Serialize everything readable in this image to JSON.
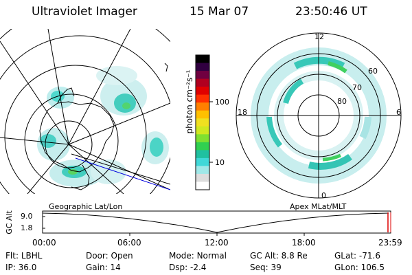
{
  "header": {
    "instrument": "Ultraviolet Imager",
    "date": "15 Mar 07",
    "time": "23:50:46 UT"
  },
  "colorbar": {
    "unit_label": "photon cm⁻²s⁻¹",
    "ticks": [
      "100",
      "10"
    ],
    "colors": [
      "#ffffff",
      "#dddddd",
      "#a0e8e8",
      "#40d8d8",
      "#20c0a0",
      "#30d050",
      "#80e030",
      "#d0e820",
      "#f0e020",
      "#ffc000",
      "#ff8000",
      "#ff3000",
      "#e00000",
      "#b00020",
      "#700040",
      "#300040",
      "#000000"
    ]
  },
  "left_map": {
    "caption": "Geographic Lat/Lon"
  },
  "right_map": {
    "caption": "Apex MLat/MLT",
    "mlt_labels": {
      "top": "12",
      "right": "6",
      "bottom": "0",
      "left": "18"
    },
    "mlat_labels": [
      "60",
      "70",
      "80"
    ]
  },
  "timeline": {
    "ylabel": "GC Alt",
    "yticks": [
      "9.0",
      "1.8"
    ],
    "xticks": [
      "00:00",
      "06:00",
      "12:00",
      "18:00",
      "23:59"
    ]
  },
  "info": {
    "row1": [
      {
        "label": "Flt:",
        "value": "LBHL"
      },
      {
        "label": "Door:",
        "value": "Open"
      },
      {
        "label": "Mode:",
        "value": "Normal"
      },
      {
        "label": "GC Alt:",
        "value": "8.8 Re"
      },
      {
        "label": "GLat:",
        "value": "-71.6"
      }
    ],
    "row2": [
      {
        "label": "IP:",
        "value": "36.0"
      },
      {
        "label": "Gain:",
        "value": "14"
      },
      {
        "label": "Dsp:",
        "value": "-2.4"
      },
      {
        "label": "Seq:",
        "value": "39"
      },
      {
        "label": "GLon:",
        "value": "106.5"
      }
    ]
  }
}
